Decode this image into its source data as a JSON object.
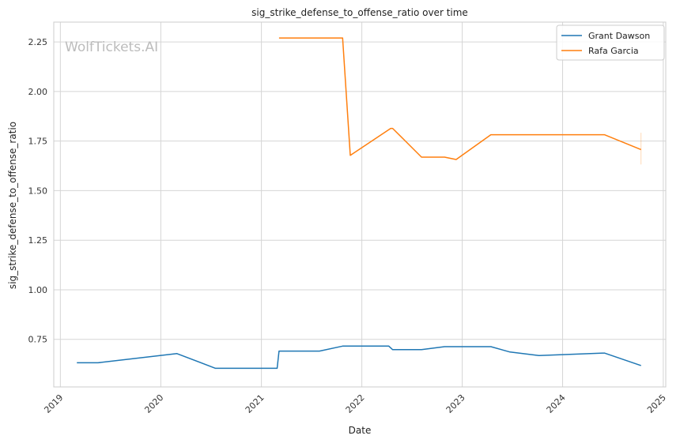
{
  "watermark": "WolfTickets.AI",
  "chart_data": {
    "type": "line",
    "title": "sig_strike_defense_to_offense_ratio over time",
    "xlabel": "Date",
    "ylabel": "sig_strike_defense_to_offense_ratio",
    "xlim": [
      "2018-12-08",
      "2025-01-10"
    ],
    "ylim": [
      0.51,
      2.35
    ],
    "x_ticks": [
      "2019",
      "2020",
      "2021",
      "2022",
      "2023",
      "2024",
      "2025"
    ],
    "y_ticks": [
      "0.75",
      "1.00",
      "1.25",
      "1.50",
      "1.75",
      "2.00",
      "2.25"
    ],
    "y_tick_values": [
      0.75,
      1.0,
      1.25,
      1.5,
      1.75,
      2.0,
      2.25
    ],
    "grid": true,
    "legend": "top-right",
    "series": [
      {
        "name": "Grant Dawson",
        "color": "#1f77b4",
        "points": [
          [
            "2019-03-02",
            0.632
          ],
          [
            "2019-05-18",
            0.632
          ],
          [
            "2020-02-29",
            0.678
          ],
          [
            "2020-07-18",
            0.604
          ],
          [
            "2021-02-27",
            0.604
          ],
          [
            "2021-03-06",
            0.691
          ],
          [
            "2021-07-31",
            0.691
          ],
          [
            "2021-10-23",
            0.716
          ],
          [
            "2022-04-09",
            0.716
          ],
          [
            "2022-04-23",
            0.698
          ],
          [
            "2022-08-06",
            0.698
          ],
          [
            "2022-10-29",
            0.713
          ],
          [
            "2023-04-15",
            0.713
          ],
          [
            "2023-06-24",
            0.686
          ],
          [
            "2023-10-07",
            0.668
          ],
          [
            "2024-06-01",
            0.681
          ],
          [
            "2024-10-12",
            0.618
          ]
        ]
      },
      {
        "name": "Rafa Garcia",
        "color": "#ff7f0e",
        "points": [
          [
            "2021-03-06",
            2.27
          ],
          [
            "2021-10-23",
            2.27
          ],
          [
            "2021-11-20",
            1.678
          ],
          [
            "2022-04-16",
            1.814
          ],
          [
            "2022-04-23",
            1.814
          ],
          [
            "2022-08-06",
            1.669
          ],
          [
            "2022-10-29",
            1.669
          ],
          [
            "2022-12-10",
            1.657
          ],
          [
            "2023-04-15",
            1.782
          ],
          [
            "2024-06-01",
            1.782
          ],
          [
            "2024-10-12",
            1.707
          ]
        ]
      }
    ]
  }
}
